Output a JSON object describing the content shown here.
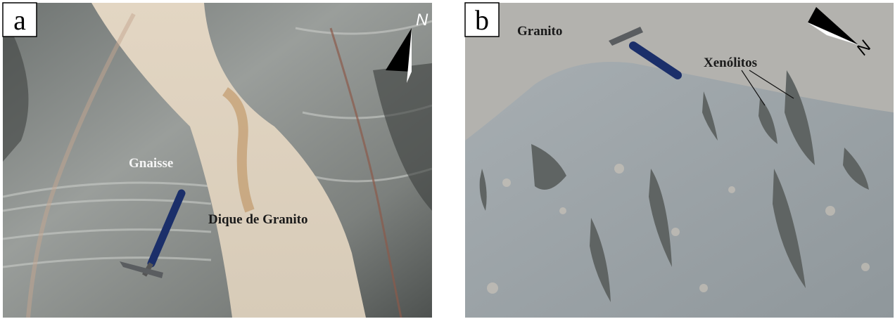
{
  "panels": [
    {
      "label": "a",
      "north": "N",
      "annotations": [
        "Gnaisse",
        "Dique de Granito"
      ]
    },
    {
      "label": "b",
      "north": "N",
      "annotations": [
        "Granito",
        "Xenólitos"
      ]
    }
  ]
}
